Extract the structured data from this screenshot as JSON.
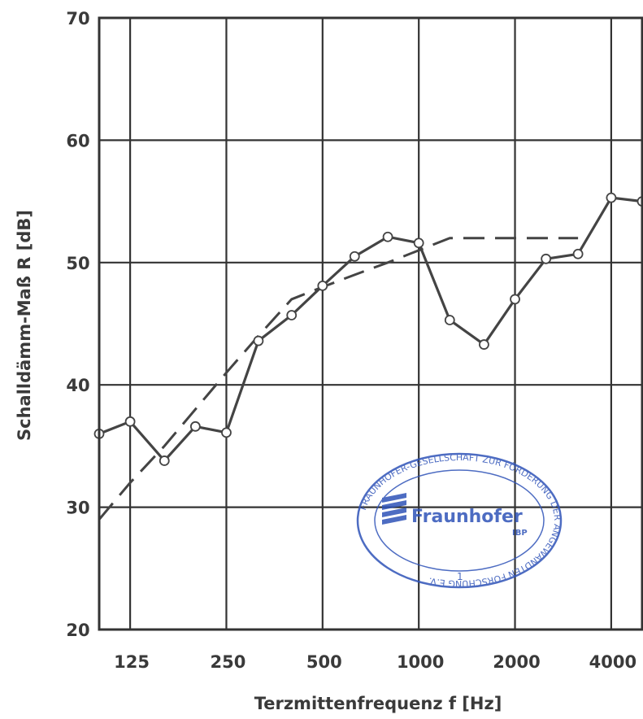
{
  "chart_data": {
    "type": "line",
    "xlabel": "Terzmittenfrequenz  f [Hz]",
    "ylabel": "Schalldämm-Maß  R [dB]",
    "x_scale": "log (third-octave bands)",
    "ylim": [
      20,
      70
    ],
    "y_ticks": [
      "20",
      "30",
      "40",
      "50",
      "60",
      "70"
    ],
    "x_tick_labels": [
      "125",
      "250",
      "500",
      "1000",
      "2000",
      "4000"
    ],
    "grid": true,
    "series": [
      {
        "style": "solid with circle markers",
        "x": [
          100,
          125,
          160,
          200,
          250,
          315,
          400,
          500,
          630,
          800,
          1000,
          1250,
          1600,
          2000,
          2500,
          3150,
          4000,
          5000
        ],
        "y": [
          36.0,
          37.0,
          33.8,
          36.6,
          36.1,
          43.6,
          45.7,
          48.1,
          50.5,
          52.1,
          51.6,
          45.3,
          43.3,
          47.0,
          50.3,
          50.7,
          55.3,
          55.0
        ]
      },
      {
        "style": "dashed",
        "x": [
          100,
          125,
          160,
          200,
          250,
          315,
          400,
          500,
          630,
          800,
          1000,
          1250,
          1600,
          2000,
          2500,
          3150
        ],
        "y": [
          29.0,
          32.0,
          35.0,
          38.0,
          41.0,
          44.0,
          47.0,
          48.0,
          49.0,
          50.0,
          51.0,
          52.0,
          52.0,
          52.0,
          52.0,
          52.0
        ]
      }
    ]
  },
  "stamp": {
    "name": "Fraunhofer",
    "institute": "IBP",
    "ring_text": "FRAUNHOFER-GESELLSCHAFT ZUR FÖRDERUNG DER ANGEWANDTEN FORSCHUNG E.V.",
    "number": "1",
    "color": "#2f53b8"
  }
}
